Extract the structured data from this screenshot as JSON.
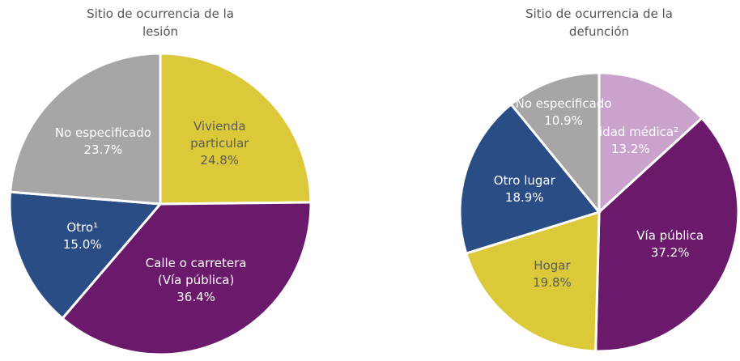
{
  "chart_data": [
    {
      "type": "pie",
      "title": "Sitio de ocurrencia de la lesión",
      "categories": [
        "Vivienda particular",
        "Calle o carretera (Vía pública)",
        "Otro¹",
        "No especificado"
      ],
      "values": [
        24.8,
        36.4,
        15.0,
        23.7
      ],
      "value_labels": [
        "24.8%",
        "36.4%",
        "15.0%",
        "23.7%"
      ],
      "colors": [
        "#dcc93a",
        "#6b1a6b",
        "#2b4d86",
        "#a7a5a6"
      ],
      "label_colors": [
        "#5a5a5a",
        "#ffffff",
        "#ffffff",
        "#ffffff"
      ]
    },
    {
      "type": "pie",
      "title": "Sitio de ocurrencia de la defunción",
      "categories": [
        "Unidad médica²",
        "Vía pública",
        "Hogar",
        "Otro lugar",
        "No especificado"
      ],
      "values": [
        13.2,
        37.2,
        19.8,
        18.9,
        10.9
      ],
      "value_labels": [
        "13.2%",
        "37.2%",
        "19.8%",
        "18.9%",
        "10.9%"
      ],
      "colors": [
        "#c9a3cc",
        "#6b1a6b",
        "#dcc93a",
        "#2b4d86",
        "#a7a5a6"
      ],
      "label_colors": [
        "#ffffff",
        "#ffffff",
        "#5a5a5a",
        "#ffffff",
        "#ffffff"
      ]
    }
  ]
}
